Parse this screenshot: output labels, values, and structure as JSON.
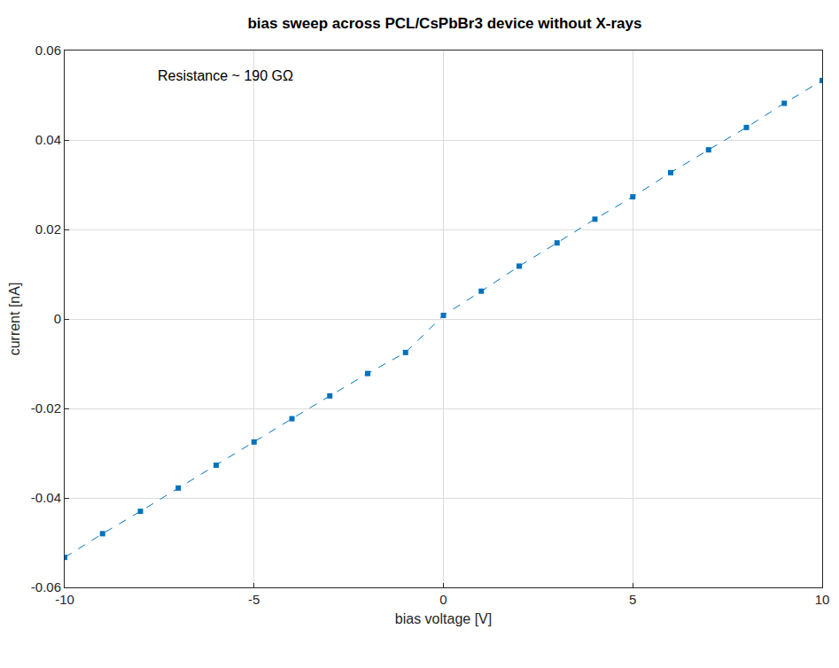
{
  "chart_data": {
    "type": "line",
    "title": "bias sweep across PCL/CsPbBr3 device without X-rays",
    "x_label": "bias voltage [V]",
    "y_label": "current [nA]",
    "annotations": [
      "Resistance ~ 190 GΩ"
    ],
    "x": [
      -10,
      -9,
      -8,
      -7,
      -6,
      -5,
      -4,
      -3,
      -2,
      -1,
      0,
      1,
      2,
      3,
      4,
      5,
      6,
      7,
      8,
      9,
      10
    ],
    "series": [
      {
        "color": "#0072bd",
        "marker": "square",
        "line_style": "dashed",
        "values": [
          -0.0533,
          -0.048,
          -0.043,
          -0.0378,
          -0.0327,
          -0.0275,
          -0.0223,
          -0.0172,
          -0.0122,
          -0.0075,
          0.0008,
          0.0062,
          0.0118,
          0.017,
          0.0223,
          0.0273,
          0.0327,
          0.0378,
          0.0428,
          0.0482,
          0.0533
        ]
      }
    ],
    "xlim": [
      -10,
      10
    ],
    "xticks": [
      -10,
      -5,
      0,
      5,
      10
    ],
    "ylim": [
      -0.06,
      0.06
    ],
    "yticks": [
      -0.06,
      -0.04,
      -0.02,
      0,
      0.02,
      0.04,
      0.06
    ],
    "grid": true
  }
}
